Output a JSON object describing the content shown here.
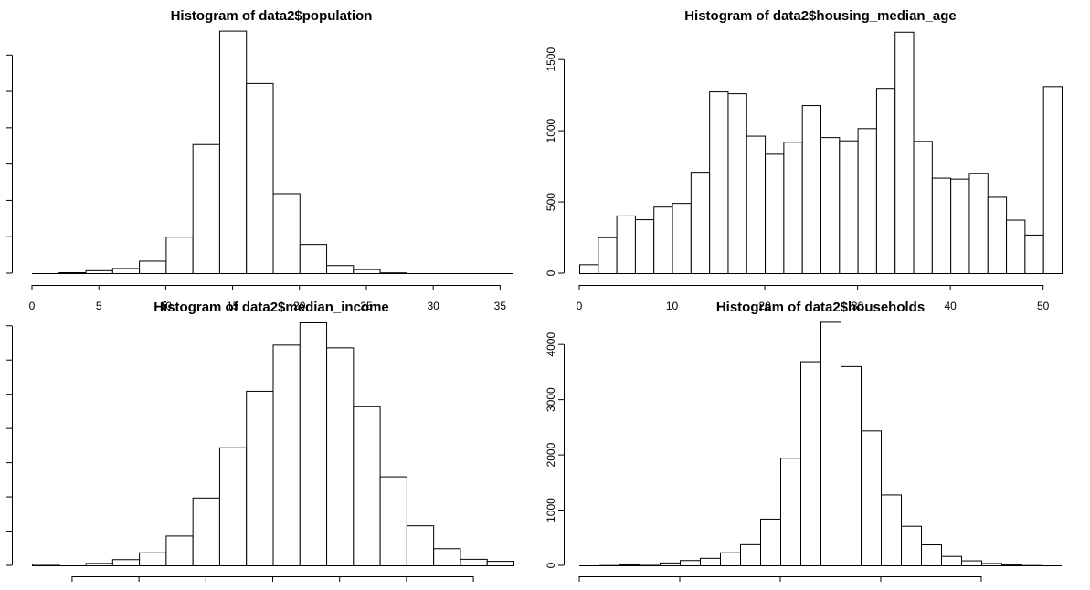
{
  "chart_data": [
    {
      "type": "bar",
      "title": "Histogram of data2$population",
      "xlabel": "",
      "ylabel": "",
      "x_ticks": [
        0,
        5,
        10,
        15,
        20,
        25,
        30,
        35
      ],
      "x_tick_labels": [
        "0",
        "5",
        "10",
        "15",
        "20",
        "25",
        "30",
        "35"
      ],
      "y_ticks": [
        0,
        1,
        2,
        3,
        4,
        5,
        6
      ],
      "y_tick_labels": [],
      "xlim": [
        0,
        36
      ],
      "ylim": [
        0,
        6.66
      ],
      "bins": [
        {
          "start": 2,
          "end": 4,
          "count": 0.025
        },
        {
          "start": 4,
          "end": 6,
          "count": 0.08
        },
        {
          "start": 6,
          "end": 8,
          "count": 0.14
        },
        {
          "start": 8,
          "end": 10,
          "count": 0.34
        },
        {
          "start": 10,
          "end": 12,
          "count": 1.0
        },
        {
          "start": 12,
          "end": 14,
          "count": 3.55
        },
        {
          "start": 14,
          "end": 16,
          "count": 6.67
        },
        {
          "start": 16,
          "end": 18,
          "count": 5.23
        },
        {
          "start": 18,
          "end": 20,
          "count": 2.2
        },
        {
          "start": 20,
          "end": 22,
          "count": 0.8
        },
        {
          "start": 22,
          "end": 24,
          "count": 0.22
        },
        {
          "start": 24,
          "end": 26,
          "count": 0.11
        },
        {
          "start": 26,
          "end": 28,
          "count": 0.02
        }
      ]
    },
    {
      "type": "bar",
      "title": "Histogram of data2$housing_median_age",
      "xlabel": "",
      "ylabel": "",
      "x_ticks": [
        0,
        10,
        20,
        30,
        40,
        50
      ],
      "x_tick_labels": [
        "0",
        "10",
        "20",
        "30",
        "40",
        "50"
      ],
      "y_ticks": [
        0,
        500,
        1000,
        1500
      ],
      "y_tick_labels": [
        "0",
        "500",
        "1000",
        "1500"
      ],
      "xlim": [
        0,
        52
      ],
      "ylim": [
        0,
        1700
      ],
      "bins": [
        {
          "start": 0,
          "end": 2,
          "count": 62
        },
        {
          "start": 2,
          "end": 4,
          "count": 252
        },
        {
          "start": 4,
          "end": 6,
          "count": 405
        },
        {
          "start": 6,
          "end": 8,
          "count": 378
        },
        {
          "start": 8,
          "end": 10,
          "count": 467
        },
        {
          "start": 10,
          "end": 12,
          "count": 493
        },
        {
          "start": 12,
          "end": 14,
          "count": 711
        },
        {
          "start": 14,
          "end": 16,
          "count": 1276
        },
        {
          "start": 16,
          "end": 18,
          "count": 1263
        },
        {
          "start": 18,
          "end": 20,
          "count": 965
        },
        {
          "start": 20,
          "end": 22,
          "count": 838
        },
        {
          "start": 22,
          "end": 24,
          "count": 922
        },
        {
          "start": 24,
          "end": 26,
          "count": 1180
        },
        {
          "start": 26,
          "end": 28,
          "count": 955
        },
        {
          "start": 28,
          "end": 30,
          "count": 932
        },
        {
          "start": 30,
          "end": 32,
          "count": 1018
        },
        {
          "start": 32,
          "end": 34,
          "count": 1301
        },
        {
          "start": 34,
          "end": 36,
          "count": 1695
        },
        {
          "start": 36,
          "end": 38,
          "count": 928
        },
        {
          "start": 38,
          "end": 40,
          "count": 670
        },
        {
          "start": 40,
          "end": 42,
          "count": 663
        },
        {
          "start": 42,
          "end": 44,
          "count": 704
        },
        {
          "start": 44,
          "end": 46,
          "count": 536
        },
        {
          "start": 46,
          "end": 48,
          "count": 375
        },
        {
          "start": 48,
          "end": 50,
          "count": 270
        },
        {
          "start": 50,
          "end": 52,
          "count": 1313
        }
      ]
    },
    {
      "type": "bar",
      "title": "Histogram of data2$median_income",
      "xlabel": "",
      "ylabel": "",
      "x_ticks": [
        1,
        2,
        3,
        4,
        5,
        6,
        7
      ],
      "x_tick_labels": [],
      "y_ticks": [
        0,
        1,
        2,
        3,
        4,
        5,
        6,
        7
      ],
      "y_tick_labels": [],
      "xlim": [
        0.4,
        7.6
      ],
      "ylim": [
        0,
        7.1
      ],
      "bins": [
        {
          "start": 0.4,
          "end": 0.8,
          "count": 0.04
        },
        {
          "start": 0.8,
          "end": 1.2,
          "count": 0.0
        },
        {
          "start": 1.2,
          "end": 1.6,
          "count": 0.07
        },
        {
          "start": 1.6,
          "end": 2.0,
          "count": 0.18
        },
        {
          "start": 2.0,
          "end": 2.4,
          "count": 0.38
        },
        {
          "start": 2.4,
          "end": 2.8,
          "count": 0.87
        },
        {
          "start": 2.8,
          "end": 3.2,
          "count": 1.98
        },
        {
          "start": 3.2,
          "end": 3.6,
          "count": 3.45
        },
        {
          "start": 3.6,
          "end": 4.0,
          "count": 5.1
        },
        {
          "start": 4.0,
          "end": 4.4,
          "count": 6.45
        },
        {
          "start": 4.4,
          "end": 4.8,
          "count": 7.1
        },
        {
          "start": 4.8,
          "end": 5.2,
          "count": 6.37
        },
        {
          "start": 5.2,
          "end": 5.6,
          "count": 4.65
        },
        {
          "start": 5.6,
          "end": 6.0,
          "count": 2.6
        },
        {
          "start": 6.0,
          "end": 6.4,
          "count": 1.17
        },
        {
          "start": 6.4,
          "end": 6.8,
          "count": 0.5
        },
        {
          "start": 6.8,
          "end": 7.2,
          "count": 0.19
        },
        {
          "start": 7.2,
          "end": 7.6,
          "count": 0.13
        }
      ]
    },
    {
      "type": "bar",
      "title": "Histogram of data2$households",
      "xlabel": "",
      "ylabel": "",
      "x_ticks": [
        0,
        2,
        4,
        6,
        8
      ],
      "x_tick_labels": [],
      "y_ticks": [
        0,
        1000,
        2000,
        3000,
        4000
      ],
      "y_tick_labels": [
        "0",
        "1000",
        "2000",
        "3000",
        "4000"
      ],
      "xlim": [
        0,
        9.6
      ],
      "ylim": [
        0,
        4400
      ],
      "bins": [
        {
          "start": 0.4,
          "end": 0.8,
          "count": 5
        },
        {
          "start": 0.8,
          "end": 1.2,
          "count": 16
        },
        {
          "start": 1.2,
          "end": 1.6,
          "count": 25
        },
        {
          "start": 1.6,
          "end": 2.0,
          "count": 52
        },
        {
          "start": 2.0,
          "end": 2.4,
          "count": 95
        },
        {
          "start": 2.4,
          "end": 2.8,
          "count": 135
        },
        {
          "start": 2.8,
          "end": 3.2,
          "count": 236
        },
        {
          "start": 3.2,
          "end": 3.6,
          "count": 383
        },
        {
          "start": 3.6,
          "end": 4.0,
          "count": 845
        },
        {
          "start": 4.0,
          "end": 4.4,
          "count": 1948
        },
        {
          "start": 4.4,
          "end": 4.8,
          "count": 3696
        },
        {
          "start": 4.8,
          "end": 5.2,
          "count": 4410
        },
        {
          "start": 5.2,
          "end": 5.6,
          "count": 3608
        },
        {
          "start": 5.6,
          "end": 6.0,
          "count": 2443
        },
        {
          "start": 6.0,
          "end": 6.4,
          "count": 1283
        },
        {
          "start": 6.4,
          "end": 6.8,
          "count": 716
        },
        {
          "start": 6.8,
          "end": 7.2,
          "count": 380
        },
        {
          "start": 7.2,
          "end": 7.6,
          "count": 170
        },
        {
          "start": 7.6,
          "end": 8.0,
          "count": 90
        },
        {
          "start": 8.0,
          "end": 8.4,
          "count": 42
        },
        {
          "start": 8.4,
          "end": 8.8,
          "count": 18
        },
        {
          "start": 8.8,
          "end": 9.2,
          "count": 5
        }
      ]
    }
  ]
}
